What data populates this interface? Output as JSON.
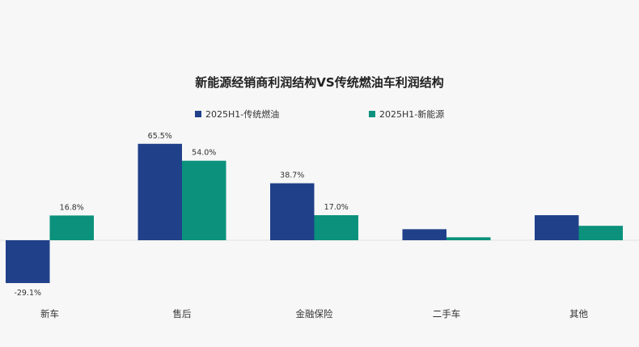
{
  "chart_data": {
    "type": "bar",
    "title": "新能源经销商利润结构VS传统燃油车利润结构",
    "categories": [
      "新车",
      "售后",
      "金融保险",
      "二手车",
      "其他"
    ],
    "series": [
      {
        "name": "2025H1-传统燃油",
        "color": "#20408a",
        "values": [
          -29.1,
          65.5,
          38.7,
          7.5,
          17.0
        ],
        "data_labels": [
          "-29.1%",
          "65.5%",
          "38.7%",
          "",
          ""
        ]
      },
      {
        "name": "2025H1-新能源",
        "color": "#0b917c",
        "values": [
          16.8,
          54.0,
          17.0,
          2.0,
          9.8
        ],
        "data_labels": [
          "16.8%",
          "54.0%",
          "17.0%",
          "",
          ""
        ]
      }
    ],
    "ylim": [
      -32,
      70
    ],
    "grid": false,
    "legend_position": "top-center",
    "xlabel": "",
    "ylabel": ""
  }
}
